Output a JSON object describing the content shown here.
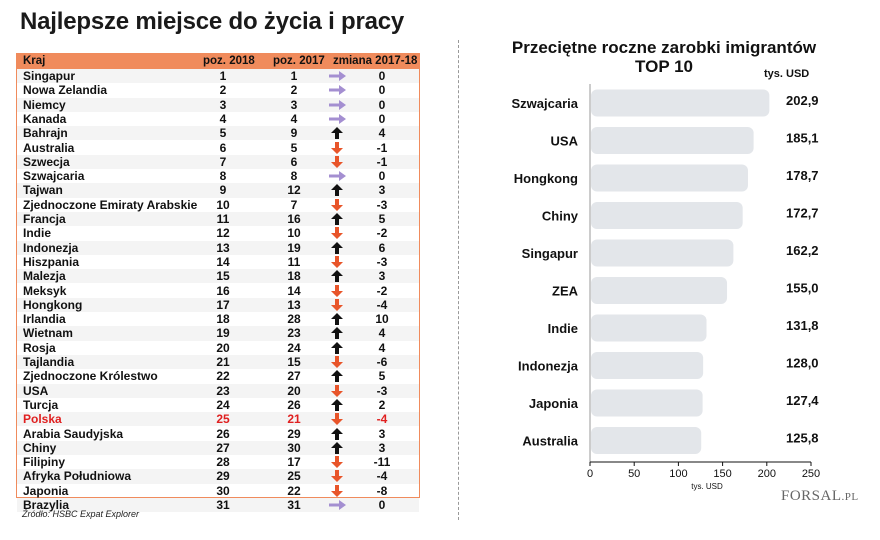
{
  "left_title": "Najlepsze miejsce do życia i pracy",
  "table": {
    "headers": [
      "Kraj",
      "poz. 2018",
      "poz. 2017",
      "zmiana 2017-18"
    ],
    "rows": [
      {
        "country": "Singapur",
        "p2018": "1",
        "p2017": "1",
        "change": "0",
        "dir": "same"
      },
      {
        "country": "Nowa Zelandia",
        "p2018": "2",
        "p2017": "2",
        "change": "0",
        "dir": "same"
      },
      {
        "country": "Niemcy",
        "p2018": "3",
        "p2017": "3",
        "change": "0",
        "dir": "same"
      },
      {
        "country": "Kanada",
        "p2018": "4",
        "p2017": "4",
        "change": "0",
        "dir": "same"
      },
      {
        "country": "Bahrajn",
        "p2018": "5",
        "p2017": "9",
        "change": "4",
        "dir": "up"
      },
      {
        "country": "Australia",
        "p2018": "6",
        "p2017": "5",
        "change": "-1",
        "dir": "down"
      },
      {
        "country": "Szwecja",
        "p2018": "7",
        "p2017": "6",
        "change": "-1",
        "dir": "down"
      },
      {
        "country": "Szwajcaria",
        "p2018": "8",
        "p2017": "8",
        "change": "0",
        "dir": "same"
      },
      {
        "country": "Tajwan",
        "p2018": "9",
        "p2017": "12",
        "change": "3",
        "dir": "up"
      },
      {
        "country": "Zjednoczone Emiraty Arabskie",
        "p2018": "10",
        "p2017": "7",
        "change": "-3",
        "dir": "down"
      },
      {
        "country": "Francja",
        "p2018": "11",
        "p2017": "16",
        "change": "5",
        "dir": "up"
      },
      {
        "country": "Indie",
        "p2018": "12",
        "p2017": "10",
        "change": "-2",
        "dir": "down"
      },
      {
        "country": "Indonezja",
        "p2018": "13",
        "p2017": "19",
        "change": "6",
        "dir": "up"
      },
      {
        "country": "Hiszpania",
        "p2018": "14",
        "p2017": "11",
        "change": "-3",
        "dir": "down"
      },
      {
        "country": "Malezja",
        "p2018": "15",
        "p2017": "18",
        "change": "3",
        "dir": "up"
      },
      {
        "country": "Meksyk",
        "p2018": "16",
        "p2017": "14",
        "change": "-2",
        "dir": "down"
      },
      {
        "country": "Hongkong",
        "p2018": "17",
        "p2017": "13",
        "change": "-4",
        "dir": "down"
      },
      {
        "country": "Irlandia",
        "p2018": "18",
        "p2017": "28",
        "change": "10",
        "dir": "up"
      },
      {
        "country": "Wietnam",
        "p2018": "19",
        "p2017": "23",
        "change": "4",
        "dir": "up"
      },
      {
        "country": "Rosja",
        "p2018": "20",
        "p2017": "24",
        "change": "4",
        "dir": "up"
      },
      {
        "country": "Tajlandia",
        "p2018": "21",
        "p2017": "15",
        "change": "-6",
        "dir": "down"
      },
      {
        "country": "Zjednoczone Królestwo",
        "p2018": "22",
        "p2017": "27",
        "change": "5",
        "dir": "up"
      },
      {
        "country": "USA",
        "p2018": "23",
        "p2017": "20",
        "change": "-3",
        "dir": "down"
      },
      {
        "country": "Turcja",
        "p2018": "24",
        "p2017": "26",
        "change": "2",
        "dir": "up"
      },
      {
        "country": "Polska",
        "p2018": "25",
        "p2017": "21",
        "change": "-4",
        "dir": "down",
        "highlight": true
      },
      {
        "country": "Arabia Saudyjska",
        "p2018": "26",
        "p2017": "29",
        "change": "3",
        "dir": "up"
      },
      {
        "country": "Chiny",
        "p2018": "27",
        "p2017": "30",
        "change": "3",
        "dir": "up"
      },
      {
        "country": "Filipiny",
        "p2018": "28",
        "p2017": "17",
        "change": "-11",
        "dir": "down"
      },
      {
        "country": "Afryka Południowa",
        "p2018": "29",
        "p2017": "25",
        "change": "-4",
        "dir": "down"
      },
      {
        "country": "Japonia",
        "p2018": "30",
        "p2017": "22",
        "change": "-8",
        "dir": "down"
      },
      {
        "country": "Brazylia",
        "p2018": "31",
        "p2017": "31",
        "change": "0",
        "dir": "same"
      }
    ]
  },
  "source": "Źródło: HSBC Expat Explorer",
  "colors": {
    "header_bg": "#f08b5c",
    "arrow_same": "#a48fd1",
    "arrow_up": "#111111",
    "arrow_down": "#e8552a",
    "highlight": "#e02020",
    "bar": "#e3e6ea"
  },
  "right_title_line1": "Przeciętne roczne zarobki imigrantów",
  "right_title_line2": "TOP 10",
  "unit_label": "tys. USD",
  "logo_main": "FORSAL",
  "logo_suffix": ".PL",
  "chart_data": {
    "type": "bar",
    "orientation": "horizontal",
    "title": "Przeciętne roczne zarobki imigrantów TOP 10",
    "xlabel": "tys. USD",
    "categories": [
      "Szwajcaria",
      "USA",
      "Hongkong",
      "Chiny",
      "Singapur",
      "ZEA",
      "Indie",
      "Indonezja",
      "Japonia",
      "Australia"
    ],
    "values": [
      202.9,
      185.1,
      178.7,
      172.7,
      162.2,
      155.0,
      131.8,
      128.0,
      127.4,
      125.8
    ],
    "value_labels": [
      "202,9",
      "185,1",
      "178,7",
      "172,7",
      "162,2",
      "155,0",
      "131,8",
      "128,0",
      "127,4",
      "125,8"
    ],
    "xlim": [
      0,
      250
    ],
    "xticks": [
      0,
      50,
      100,
      150,
      200,
      250
    ]
  }
}
